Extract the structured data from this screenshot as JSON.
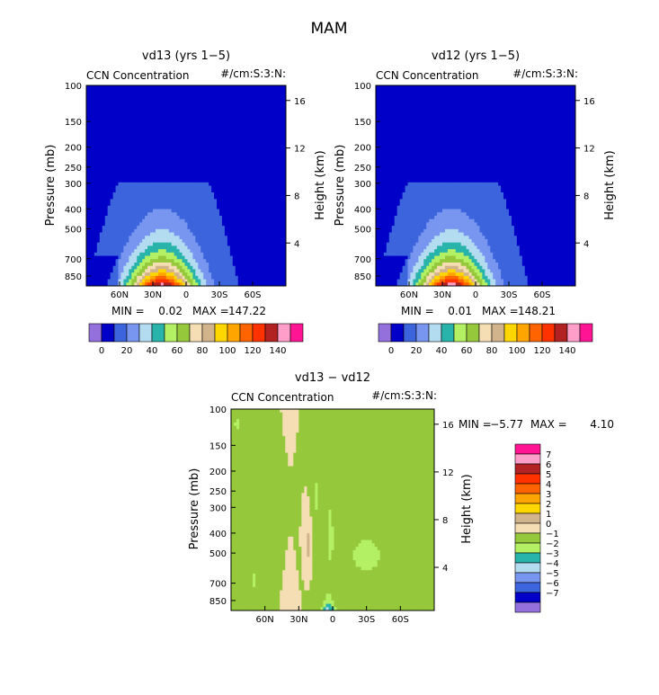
{
  "figure_title": "MAM",
  "palette_main": [
    "#9370db",
    "#0000c8",
    "#3c64dc",
    "#7896f0",
    "#b4dcf0",
    "#28b4aa",
    "#b4f064",
    "#96c83c",
    "#f5deb3",
    "#d2b48c",
    "#ffd700",
    "#ffa500",
    "#ff6400",
    "#ff3200",
    "#b22222",
    "#ff9ec8",
    "#ff1493"
  ],
  "palette_diff": [
    "#9370db",
    "#0000c8",
    "#3c64dc",
    "#7896f0",
    "#b4dcf0",
    "#28b4aa",
    "#b4f064",
    "#96c83c",
    "#f5deb3",
    "#d2b48c",
    "#ffd700",
    "#ffa500",
    "#ff6400",
    "#ff3200",
    "#b22222",
    "#ff9ec8",
    "#ff1493"
  ],
  "chart_data": [
    {
      "type": "contour",
      "title": "vd13 (yrs 1−5)",
      "subtitle_left": "CCN Concentration",
      "subtitle_right": "#/cm:S:3:N:",
      "ylabel": "Pressure (mb)",
      "ylabel_right": "Height (km)",
      "y_ticks": [
        "100",
        "150",
        "200",
        "250",
        "300",
        "400",
        "500",
        "700",
        "850"
      ],
      "y_right_ticks": [
        "16",
        "12",
        "8",
        "4"
      ],
      "x_ticks": [
        "60N",
        "30N",
        "0",
        "30S",
        "60S"
      ],
      "stats_min_label": "MIN =",
      "stats_min": "0.02",
      "stats_max_label": "MAX =",
      "stats_max": "147.22",
      "max_value": 147.22,
      "peak_lat": 22,
      "colorbar_labels": [
        "0",
        "20",
        "40",
        "60",
        "80",
        "100",
        "120",
        "140"
      ],
      "levels": [
        0,
        10,
        20,
        30,
        40,
        50,
        60,
        70,
        80,
        90,
        100,
        110,
        120,
        130,
        140,
        150
      ]
    },
    {
      "type": "contour",
      "title": "vd12 (yrs 1−5)",
      "subtitle_left": "CCN Concentration",
      "subtitle_right": "#/cm:S:3:N:",
      "ylabel": "Pressure (mb)",
      "ylabel_right": "Height (km)",
      "y_ticks": [
        "100",
        "150",
        "200",
        "250",
        "300",
        "400",
        "500",
        "700",
        "850"
      ],
      "y_right_ticks": [
        "16",
        "12",
        "8",
        "4"
      ],
      "x_ticks": [
        "60N",
        "30N",
        "0",
        "30S",
        "60S"
      ],
      "stats_min_label": "MIN =",
      "stats_min": "0.01",
      "stats_max_label": "MAX =",
      "stats_max": "148.21",
      "max_value": 148.21,
      "peak_lat": 22,
      "colorbar_labels": [
        "0",
        "20",
        "40",
        "60",
        "80",
        "100",
        "120",
        "140"
      ],
      "levels": [
        0,
        10,
        20,
        30,
        40,
        50,
        60,
        70,
        80,
        90,
        100,
        110,
        120,
        130,
        140,
        150
      ]
    },
    {
      "type": "contour",
      "title": "vd13 − vd12",
      "subtitle_left": "CCN Concentration",
      "subtitle_right": "#/cm:S:3:N:",
      "ylabel": "Pressure (mb)",
      "ylabel_right": "Height (km)",
      "y_ticks": [
        "100",
        "150",
        "200",
        "250",
        "300",
        "400",
        "500",
        "700",
        "850"
      ],
      "y_right_ticks": [
        "16",
        "12",
        "8",
        "4"
      ],
      "x_ticks": [
        "60N",
        "30N",
        "0",
        "30S",
        "60S"
      ],
      "stats_min_label": "MIN =",
      "stats_min": "−5.77",
      "stats_max_label": "MAX =",
      "stats_max": "4.10",
      "min_value": -5.77,
      "max_value": 4.1,
      "colorbar_labels": [
        "7",
        "6",
        "5",
        "4",
        "3",
        "2",
        "1",
        "0",
        "−1",
        "−2",
        "−3",
        "−4",
        "−5",
        "−6",
        "−7"
      ],
      "levels": [
        -7,
        -6,
        -5,
        -4,
        -3,
        -2,
        -1,
        0,
        1,
        2,
        3,
        4,
        5,
        6,
        7
      ]
    }
  ]
}
